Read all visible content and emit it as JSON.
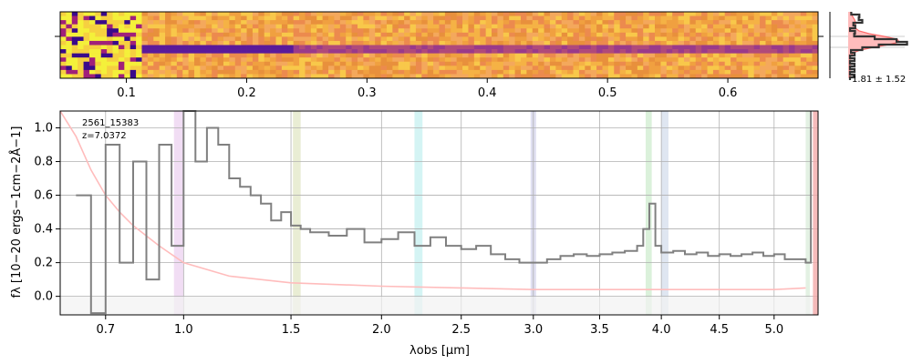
{
  "chart_data": [
    {
      "type": "heatmap",
      "panel": "2d-spectrum",
      "colormap": "plasma",
      "top_axis_ticks": [
        {
          "value": 0.1,
          "label": "0.1"
        },
        {
          "value": 0.2,
          "label": "0.2"
        },
        {
          "value": 0.3,
          "label": "0.3"
        },
        {
          "value": 0.4,
          "label": "0.4"
        },
        {
          "value": 0.5,
          "label": "0.5"
        },
        {
          "value": 0.6,
          "label": "0.6"
        }
      ],
      "xlim": [
        0.045,
        0.675
      ],
      "trace_row_fraction": 0.47
    },
    {
      "type": "line",
      "panel": "profile",
      "annotation": "1.81 ± 1.52",
      "colors": {
        "data": "#333333",
        "model": "#ff6a6a",
        "fill": "#ffbcbc"
      }
    },
    {
      "type": "line",
      "panel": "1d-spectrum",
      "title": "",
      "source_id": "2561_15383",
      "redshift_label": "z=7.0372",
      "xlabel": "λobs [μm]",
      "ylabel": "fλ [10−20 ergs−1cm−2Å−1]",
      "xlim": [
        0.55,
        5.42
      ],
      "ylim": [
        -0.11,
        1.1
      ],
      "x_scale": "sqrt",
      "grid": true,
      "x_ticks": [
        0.7,
        1.0,
        1.5,
        2.0,
        2.5,
        3.0,
        3.5,
        4.0,
        4.5,
        5.0
      ],
      "x_tick_labels": [
        "0.7",
        "1.0",
        "1.5",
        "2.0",
        "2.5",
        "3.0",
        "3.5",
        "4.0",
        "4.5",
        "5.0"
      ],
      "y_ticks": [
        0.0,
        0.2,
        0.4,
        0.6,
        0.8,
        1.0
      ],
      "y_tick_labels": [
        "0.0",
        "0.2",
        "0.4",
        "0.6",
        "0.8",
        "1.0"
      ],
      "line_bands": [
        {
          "x0": 0.96,
          "x1": 1.0,
          "color": "#e0b3e6"
        },
        {
          "x0": 1.51,
          "x1": 1.55,
          "color": "#cfd8a0"
        },
        {
          "x0": 2.2,
          "x1": 2.25,
          "color": "#a0e6e6"
        },
        {
          "x0": 2.98,
          "x1": 3.02,
          "color": "#b8b8e0"
        },
        {
          "x0": 3.87,
          "x1": 3.92,
          "color": "#b0e0b0"
        },
        {
          "x0": 4.0,
          "x1": 4.06,
          "color": "#b8c8e0"
        },
        {
          "x0": 5.3,
          "x1": 5.34,
          "color": "#c0e0c0"
        }
      ],
      "series": [
        {
          "role": "flux",
          "color": "#808080",
          "x": [
            0.6,
            0.65,
            0.7,
            0.75,
            0.8,
            0.85,
            0.9,
            0.95,
            1.0,
            1.05,
            1.1,
            1.15,
            1.2,
            1.25,
            1.3,
            1.35,
            1.4,
            1.45,
            1.5,
            1.55,
            1.6,
            1.7,
            1.8,
            1.9,
            2.0,
            2.1,
            2.2,
            2.3,
            2.4,
            2.5,
            2.6,
            2.7,
            2.8,
            2.9,
            3.0,
            3.1,
            3.2,
            3.3,
            3.4,
            3.5,
            3.6,
            3.7,
            3.8,
            3.85,
            3.9,
            3.95,
            4.0,
            4.1,
            4.2,
            4.3,
            4.4,
            4.5,
            4.6,
            4.7,
            4.8,
            4.9,
            5.0,
            5.1,
            5.2,
            5.3,
            5.35
          ],
          "y": [
            0.6,
            -0.1,
            0.9,
            0.2,
            0.8,
            0.1,
            0.9,
            0.3,
            1.1,
            0.8,
            1.0,
            0.9,
            0.7,
            0.65,
            0.6,
            0.55,
            0.45,
            0.5,
            0.42,
            0.4,
            0.38,
            0.36,
            0.4,
            0.32,
            0.34,
            0.38,
            0.3,
            0.35,
            0.3,
            0.28,
            0.3,
            0.25,
            0.22,
            0.2,
            0.2,
            0.22,
            0.24,
            0.25,
            0.24,
            0.25,
            0.26,
            0.27,
            0.3,
            0.4,
            0.55,
            0.3,
            0.26,
            0.27,
            0.25,
            0.26,
            0.24,
            0.25,
            0.24,
            0.25,
            0.26,
            0.24,
            0.25,
            0.22,
            0.22,
            0.2,
            1.1
          ]
        },
        {
          "role": "error",
          "color": "#ffbcbc",
          "x": [
            0.55,
            0.6,
            0.65,
            0.7,
            0.75,
            0.8,
            0.9,
            1.0,
            1.2,
            1.5,
            2.0,
            2.5,
            3.0,
            3.5,
            4.0,
            4.5,
            5.0,
            5.3
          ],
          "y": [
            1.1,
            0.95,
            0.75,
            0.6,
            0.5,
            0.42,
            0.3,
            0.2,
            0.12,
            0.08,
            0.06,
            0.05,
            0.04,
            0.04,
            0.04,
            0.04,
            0.04,
            0.05
          ]
        }
      ],
      "right_band": {
        "x0": 5.37,
        "x1": 5.42,
        "color": "#f4aaaa"
      }
    }
  ]
}
